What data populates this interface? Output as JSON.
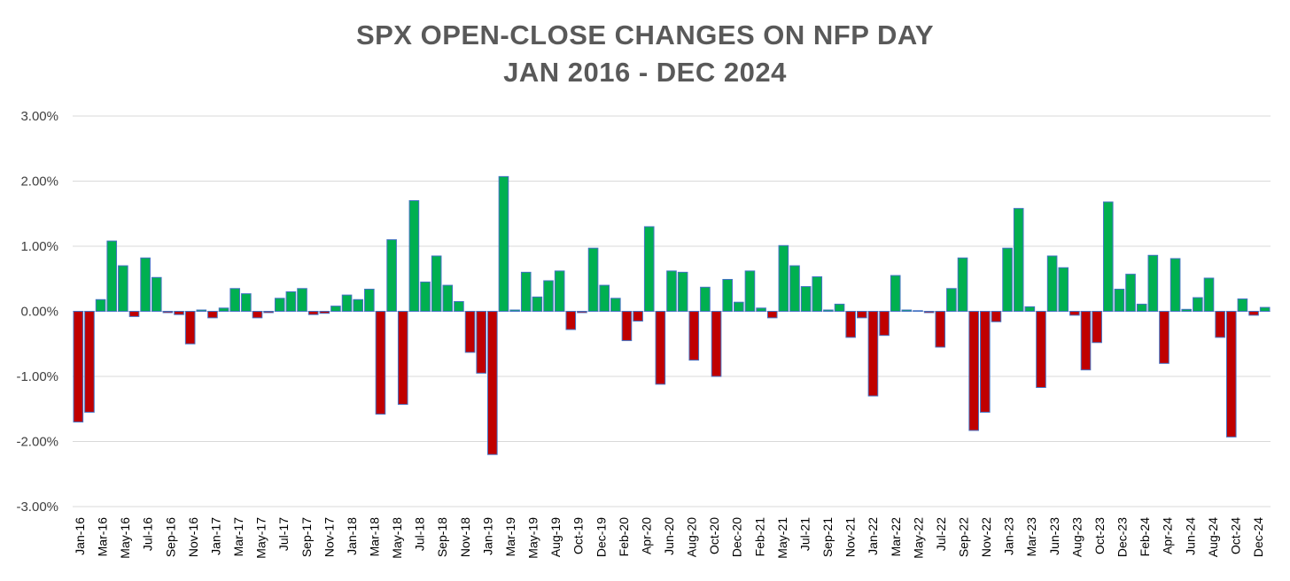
{
  "chart_data": {
    "type": "bar",
    "title": "SPX OPEN-CLOSE CHANGES ON NFP DAY",
    "subtitle": "JAN 2016 - DEC 2024",
    "xlabel": "",
    "ylabel": "",
    "ylim": [
      -3.0,
      3.0
    ],
    "y_ticks": [
      "3.00%",
      "2.00%",
      "1.00%",
      "0.00%",
      "-1.00%",
      "-2.00%",
      "-3.00%"
    ],
    "y_tick_values": [
      3,
      2,
      1,
      0,
      -1,
      -2,
      -3
    ],
    "grid": true,
    "legend": "none",
    "colors": {
      "positive": "#00b050",
      "negative": "#c00000",
      "bar_outline": "#4472c4",
      "grid": "#d9d9d9"
    },
    "x_tick_labels": [
      "Jan-16",
      "Mar-16",
      "May-16",
      "Jul-16",
      "Sep-16",
      "Nov-16",
      "Jan-17",
      "Mar-17",
      "May-17",
      "Jul-17",
      "Sep-17",
      "Nov-17",
      "Jan-18",
      "Mar-18",
      "May-18",
      "Jul-18",
      "Sep-18",
      "Nov-18",
      "Jan-19",
      "Mar-19",
      "May-19",
      "Aug-19",
      "Oct-19",
      "Dec-19",
      "Feb-20",
      "Apr-20",
      "Jun-20",
      "Aug-20",
      "Oct-20",
      "Dec-20",
      "Feb-21",
      "May-21",
      "Jul-21",
      "Sep-21",
      "Nov-21",
      "Jan-22",
      "Mar-22",
      "May-22",
      "Jul-22",
      "Sep-22",
      "Nov-22",
      "Jan-23",
      "Mar-23",
      "Jun-23",
      "Aug-23",
      "Oct-23",
      "Dec-23",
      "Feb-24",
      "Apr-24",
      "Jun-24",
      "Aug-24",
      "Oct-24",
      "Dec-24"
    ],
    "values": [
      -1.7,
      -1.55,
      0.18,
      1.08,
      0.7,
      -0.08,
      0.82,
      0.52,
      -0.02,
      -0.05,
      -0.5,
      0.02,
      -0.1,
      0.05,
      0.35,
      0.27,
      -0.1,
      -0.02,
      0.2,
      0.3,
      0.35,
      -0.05,
      -0.03,
      0.08,
      0.25,
      0.18,
      0.34,
      -1.58,
      1.1,
      -1.43,
      1.7,
      0.45,
      0.85,
      0.4,
      0.15,
      -0.63,
      -0.95,
      -2.2,
      2.07,
      0.02,
      0.6,
      0.22,
      0.47,
      0.62,
      -0.28,
      -0.02,
      0.97,
      0.4,
      0.2,
      -0.45,
      -0.15,
      1.3,
      -1.12,
      0.62,
      0.6,
      -0.75,
      0.37,
      -1.0,
      0.49,
      0.14,
      0.62,
      0.05,
      -0.1,
      1.01,
      0.7,
      0.38,
      0.53,
      0.02,
      0.11,
      -0.4,
      -0.1,
      -1.3,
      -0.37,
      0.55,
      0.02,
      0.01,
      -0.02,
      -0.55,
      0.35,
      0.82,
      -1.83,
      -1.55,
      -0.16,
      0.97,
      1.58,
      0.07,
      -1.17,
      0.85,
      0.67,
      -0.06,
      -0.9,
      -0.48,
      1.68,
      0.34,
      0.57,
      0.11,
      0.86,
      -0.8,
      0.81,
      0.03,
      0.21,
      0.51,
      -0.4,
      -1.93,
      0.19,
      -0.06,
      0.06
    ]
  }
}
